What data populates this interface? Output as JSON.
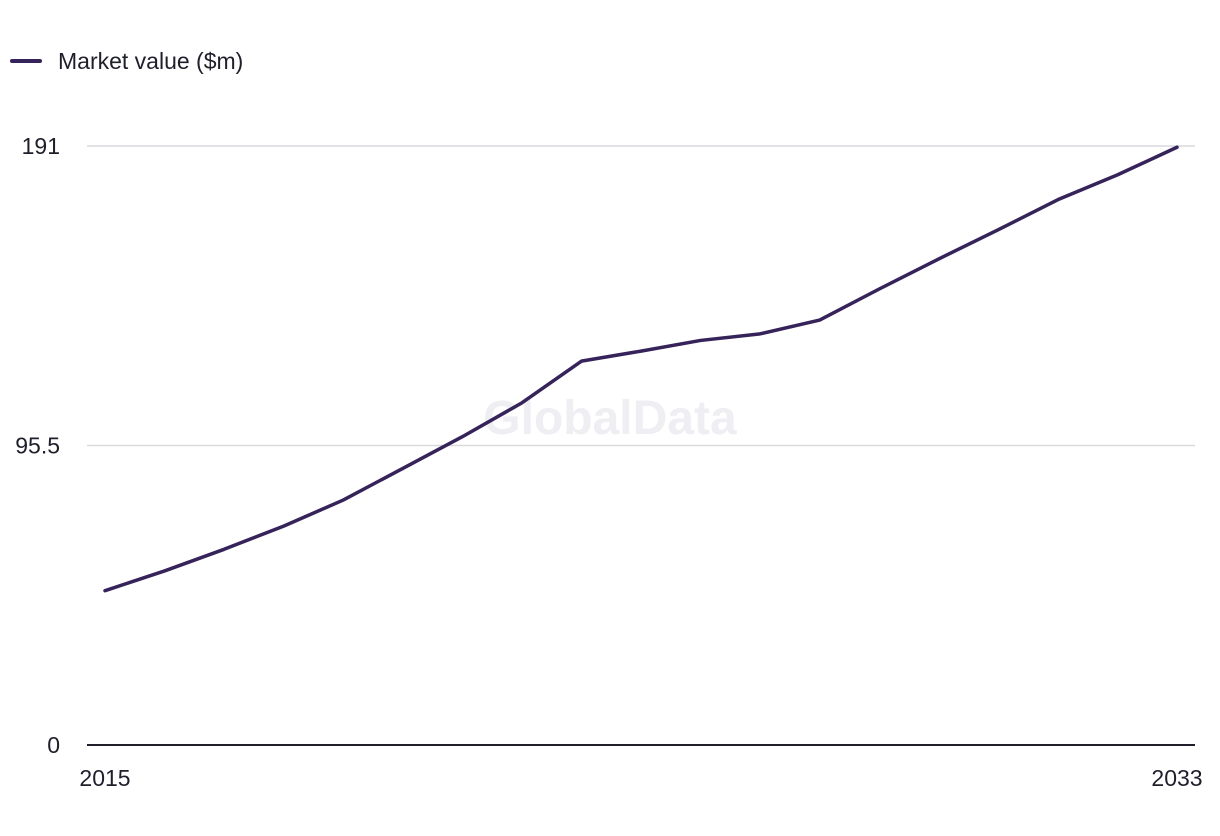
{
  "legend": {
    "label": "Market value ($m)"
  },
  "watermark": "GlobalData",
  "colors": {
    "series": "#35235a",
    "grid": "#d9d9de",
    "axis": "#1f1f2b"
  },
  "chart_data": {
    "type": "line",
    "title": "",
    "xlabel": "",
    "ylabel": "",
    "x": [
      2015,
      2016,
      2017,
      2018,
      2019,
      2020,
      2021,
      2022,
      2023,
      2024,
      2025,
      2026,
      2027,
      2028,
      2029,
      2030,
      2031,
      2032,
      2033
    ],
    "series": [
      {
        "name": "Market value ($m)",
        "values": [
          49.2,
          55.5,
          62.4,
          69.8,
          78.1,
          88.2,
          98.3,
          109.1,
          122.4,
          125.6,
          129.0,
          131.1,
          135.5,
          145.4,
          155.0,
          164.3,
          173.9,
          181.8,
          190.6
        ]
      }
    ],
    "xlim": [
      2015,
      2033
    ],
    "ylim": [
      0,
      191
    ],
    "yticks": [
      "0",
      "95.5",
      "191"
    ],
    "xticks": [
      "2015",
      "2033"
    ],
    "grid": true,
    "legend": "top-left"
  }
}
